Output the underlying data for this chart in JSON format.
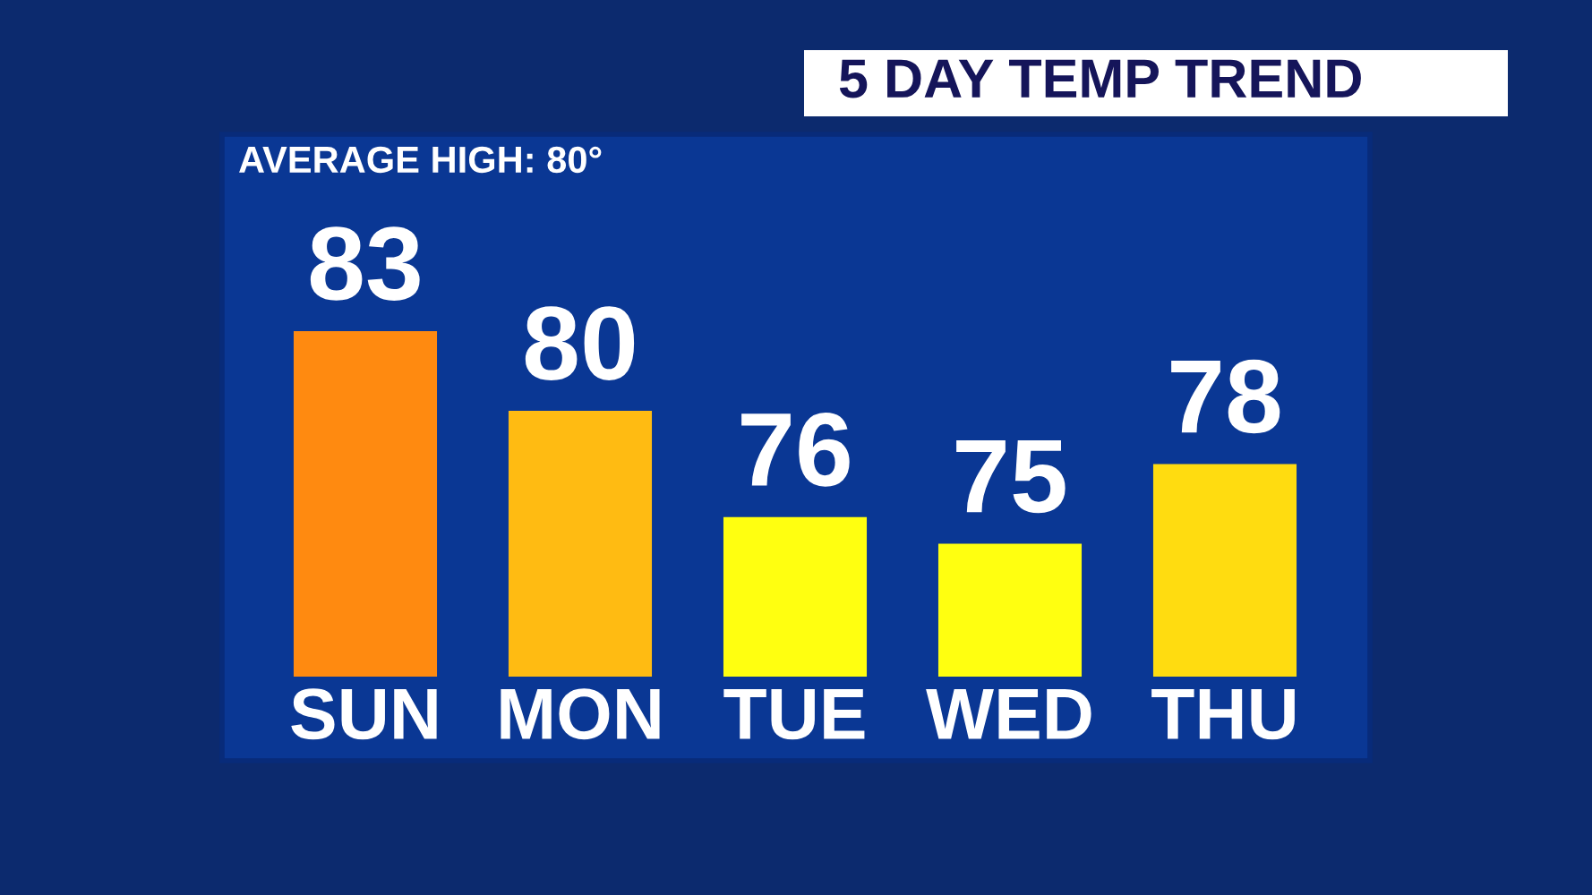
{
  "chart_data": {
    "type": "bar",
    "title": "5 DAY TEMP TREND",
    "annotations": [
      "AVERAGE HIGH: 80°"
    ],
    "categories": [
      "SUN",
      "MON",
      "TUE",
      "WED",
      "THU"
    ],
    "values": [
      83,
      80,
      76,
      75,
      78
    ],
    "colors": [
      "#ff8a10",
      "#ffbb12",
      "#ffff10",
      "#ffff10",
      "#ffdc10"
    ],
    "ylim": [
      70,
      83
    ],
    "tick_labels": "x",
    "data_labels": true,
    "grid": false,
    "legend": false
  }
}
